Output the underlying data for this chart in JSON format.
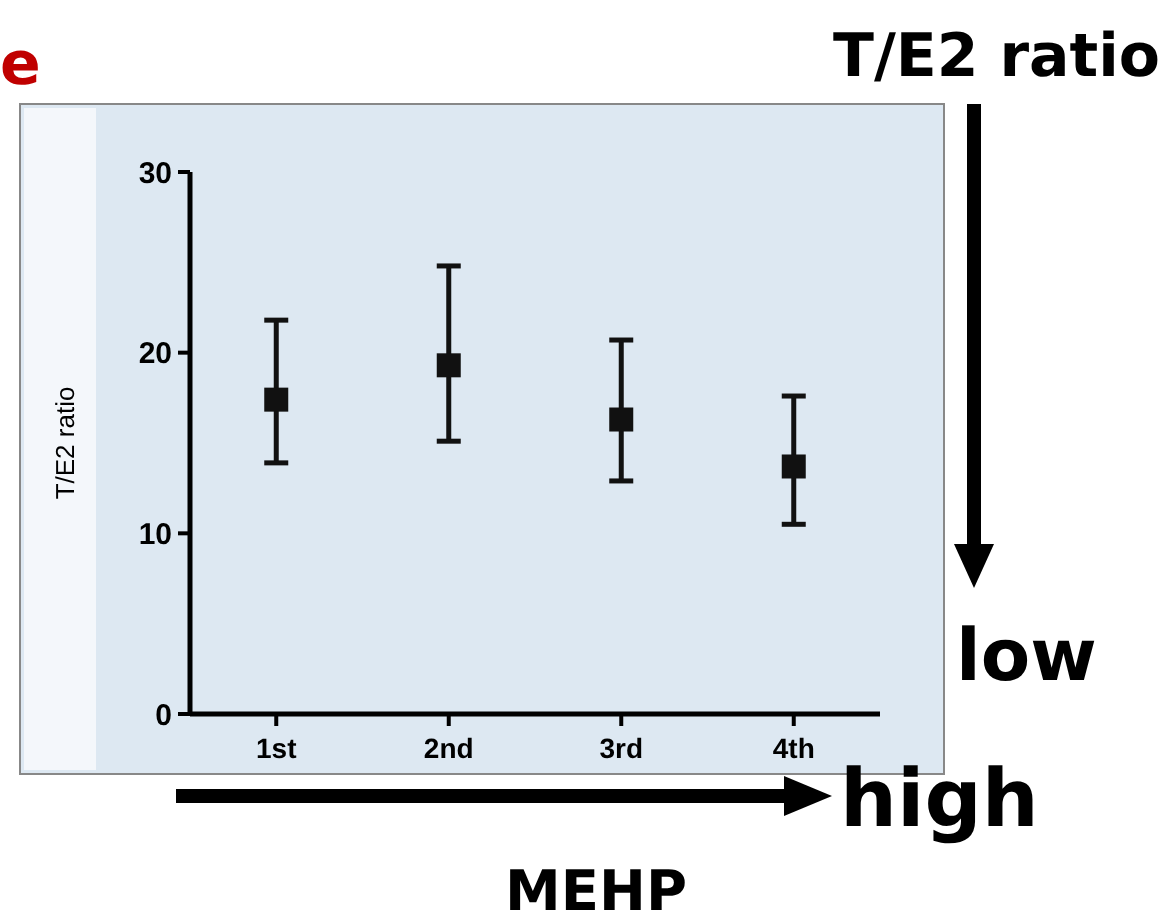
{
  "chart_data": {
    "type": "scatter",
    "ylabel": "T/E2 ratio",
    "categories": [
      "1st",
      "2nd",
      "3rd",
      "4th"
    ],
    "values": [
      17.4,
      19.3,
      16.3,
      13.7
    ],
    "errors": [
      [
        13.9,
        21.8
      ],
      [
        15.1,
        24.8
      ],
      [
        12.9,
        20.7
      ],
      [
        10.5,
        17.6
      ]
    ],
    "color": "#111111",
    "marker": "square",
    "ylim": [
      0,
      30
    ],
    "yticks": [
      0,
      10,
      20,
      30
    ],
    "annotations": [
      "e",
      "T/E2 ratio",
      "low",
      "high",
      "MEHP"
    ]
  }
}
